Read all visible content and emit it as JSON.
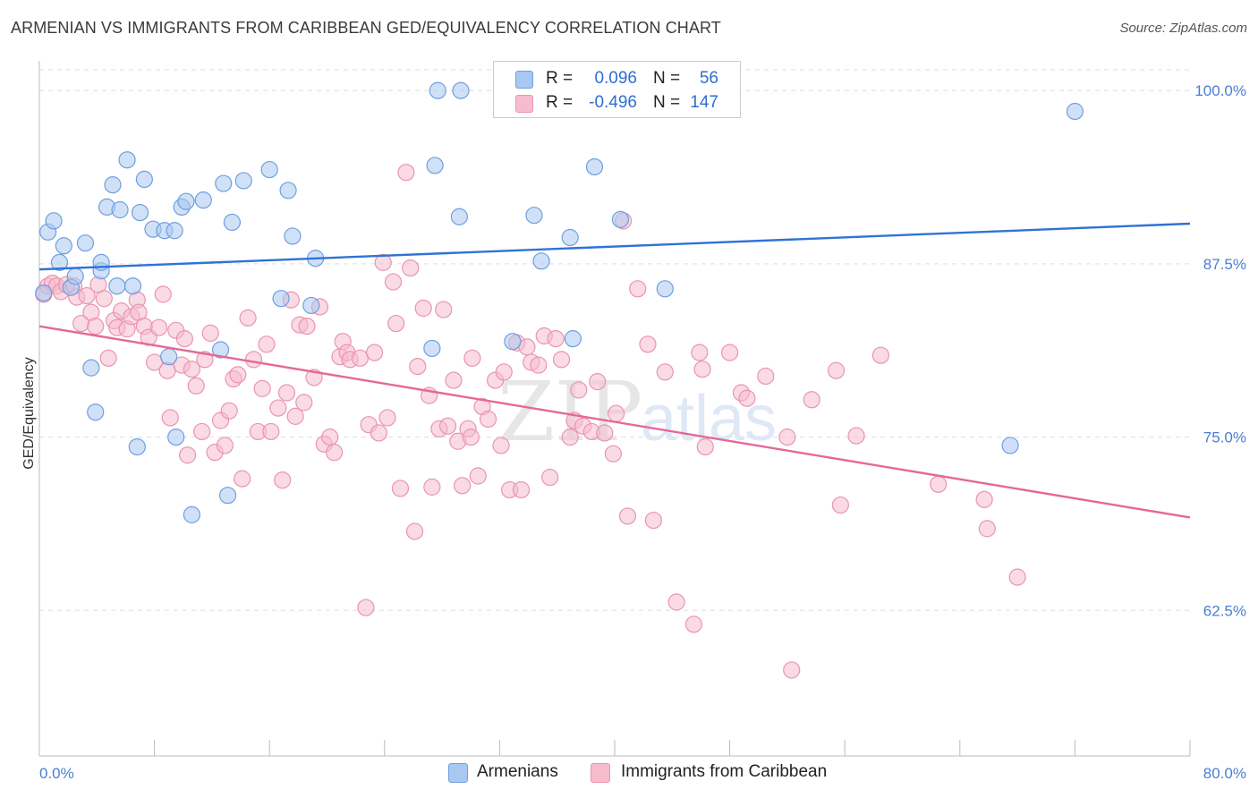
{
  "title": "ARMENIAN VS IMMIGRANTS FROM CARIBBEAN GED/EQUIVALENCY CORRELATION CHART",
  "source": "Source: ZipAtlas.com",
  "watermark": {
    "zip": "ZIP",
    "atlas": "atlas"
  },
  "colors": {
    "blue_fill": "#a9c8f0",
    "blue_stroke": "#6e9fe0",
    "blue_line": "#2f73d6",
    "pink_fill": "#f6bccd",
    "pink_stroke": "#e995b0",
    "pink_line": "#e4689a",
    "tick_text": "#4a7fd0",
    "grid": "#dddddd"
  },
  "legend": {
    "rows": [
      {
        "r_label": "R =",
        "r_value": "0.096",
        "n_label": "N =",
        "n_value": "56",
        "color": "#a9c8f0"
      },
      {
        "r_label": "R =",
        "r_value": "-0.496",
        "n_label": "N =",
        "n_value": "147",
        "color": "#f6bccd"
      }
    ]
  },
  "bottom_legend": [
    {
      "label": "Armenians",
      "color": "#a9c8f0"
    },
    {
      "label": "Immigrants from Caribbean",
      "color": "#f6bccd"
    }
  ],
  "chart_data": {
    "type": "scatter",
    "title": "ARMENIAN VS IMMIGRANTS FROM CARIBBEAN GED/EQUIVALENCY CORRELATION CHART",
    "xlabel": "",
    "ylabel": "GED/Equivalency",
    "xlim": [
      0,
      80
    ],
    "ylim": [
      52,
      101.5
    ],
    "x_tick_labels": [
      "0.0%",
      "80.0%"
    ],
    "y_ticks": [
      62.5,
      75.0,
      87.5,
      100.0
    ],
    "y_tick_labels": [
      "62.5%",
      "75.0%",
      "87.5%",
      "100.0%"
    ],
    "grid": true,
    "legend_position": "top-center",
    "series": [
      {
        "name": "Armenians",
        "color": "#a9c8f0",
        "trend": {
          "x": [
            0,
            80
          ],
          "y": [
            87.1,
            90.4
          ]
        },
        "points": [
          [
            0.6,
            89.8
          ],
          [
            1.0,
            90.6
          ],
          [
            1.4,
            87.6
          ],
          [
            1.7,
            88.8
          ],
          [
            2.2,
            85.8
          ],
          [
            2.5,
            86.6
          ],
          [
            3.2,
            89.0
          ],
          [
            3.6,
            80.0
          ],
          [
            3.9,
            76.8
          ],
          [
            4.3,
            87.0
          ],
          [
            4.3,
            87.6
          ],
          [
            4.7,
            91.6
          ],
          [
            5.1,
            93.2
          ],
          [
            5.4,
            85.9
          ],
          [
            5.6,
            91.4
          ],
          [
            6.1,
            95.0
          ],
          [
            6.5,
            85.9
          ],
          [
            6.8,
            74.3
          ],
          [
            7.0,
            91.2
          ],
          [
            7.3,
            93.6
          ],
          [
            7.9,
            90.0
          ],
          [
            8.7,
            89.9
          ],
          [
            9.0,
            80.8
          ],
          [
            9.4,
            89.9
          ],
          [
            9.5,
            75.0
          ],
          [
            9.9,
            91.6
          ],
          [
            10.2,
            92.0
          ],
          [
            10.6,
            69.4
          ],
          [
            11.4,
            92.1
          ],
          [
            12.6,
            81.3
          ],
          [
            12.8,
            93.3
          ],
          [
            13.1,
            70.8
          ],
          [
            13.4,
            90.5
          ],
          [
            14.2,
            93.5
          ],
          [
            16.0,
            94.3
          ],
          [
            16.8,
            85.0
          ],
          [
            17.3,
            92.8
          ],
          [
            17.6,
            89.5
          ],
          [
            18.9,
            84.5
          ],
          [
            19.2,
            87.9
          ],
          [
            27.3,
            81.4
          ],
          [
            27.5,
            94.6
          ],
          [
            27.7,
            100.0
          ],
          [
            29.2,
            90.9
          ],
          [
            29.3,
            100.0
          ],
          [
            32.9,
            81.9
          ],
          [
            34.4,
            91.0
          ],
          [
            34.9,
            87.7
          ],
          [
            36.9,
            89.4
          ],
          [
            37.1,
            82.1
          ],
          [
            38.6,
            94.5
          ],
          [
            40.4,
            90.7
          ],
          [
            43.5,
            85.7
          ],
          [
            67.5,
            74.4
          ],
          [
            72.0,
            98.5
          ],
          [
            0.3,
            85.4
          ]
        ]
      },
      {
        "name": "Immigrants from Caribbean",
        "color": "#f6bccd",
        "trend": {
          "x": [
            0,
            80
          ],
          "y": [
            83.0,
            69.2
          ]
        },
        "points": [
          [
            0.3,
            85.3
          ],
          [
            0.6,
            85.9
          ],
          [
            0.9,
            86.1
          ],
          [
            1.2,
            85.9
          ],
          [
            1.5,
            85.5
          ],
          [
            1.9,
            86.0
          ],
          [
            2.4,
            85.9
          ],
          [
            2.6,
            85.1
          ],
          [
            2.9,
            83.2
          ],
          [
            3.3,
            85.2
          ],
          [
            3.6,
            84.0
          ],
          [
            3.9,
            83.0
          ],
          [
            4.1,
            86.0
          ],
          [
            4.5,
            85.0
          ],
          [
            4.8,
            80.7
          ],
          [
            5.2,
            83.4
          ],
          [
            5.4,
            82.9
          ],
          [
            5.7,
            84.1
          ],
          [
            6.1,
            82.8
          ],
          [
            6.4,
            83.7
          ],
          [
            6.8,
            84.9
          ],
          [
            6.9,
            84.0
          ],
          [
            7.3,
            83.0
          ],
          [
            7.6,
            82.2
          ],
          [
            8.0,
            80.4
          ],
          [
            8.3,
            82.9
          ],
          [
            8.6,
            85.3
          ],
          [
            8.9,
            79.8
          ],
          [
            9.1,
            76.4
          ],
          [
            9.5,
            82.7
          ],
          [
            9.9,
            80.2
          ],
          [
            10.1,
            82.1
          ],
          [
            10.3,
            73.7
          ],
          [
            10.6,
            79.9
          ],
          [
            10.9,
            78.7
          ],
          [
            11.3,
            75.4
          ],
          [
            11.5,
            80.6
          ],
          [
            11.9,
            82.5
          ],
          [
            12.2,
            73.9
          ],
          [
            12.6,
            76.2
          ],
          [
            12.9,
            74.4
          ],
          [
            13.2,
            76.9
          ],
          [
            13.5,
            79.2
          ],
          [
            13.8,
            79.5
          ],
          [
            14.1,
            72.0
          ],
          [
            14.5,
            83.6
          ],
          [
            14.9,
            80.6
          ],
          [
            15.2,
            75.4
          ],
          [
            15.5,
            78.5
          ],
          [
            15.8,
            81.7
          ],
          [
            16.1,
            75.4
          ],
          [
            16.6,
            77.1
          ],
          [
            16.9,
            71.9
          ],
          [
            17.2,
            78.2
          ],
          [
            17.5,
            84.9
          ],
          [
            17.8,
            76.5
          ],
          [
            18.1,
            83.1
          ],
          [
            18.4,
            77.5
          ],
          [
            18.6,
            83.0
          ],
          [
            19.1,
            79.3
          ],
          [
            19.5,
            84.4
          ],
          [
            19.8,
            74.5
          ],
          [
            20.2,
            75.0
          ],
          [
            20.5,
            73.9
          ],
          [
            20.9,
            80.8
          ],
          [
            21.1,
            81.9
          ],
          [
            21.4,
            81.1
          ],
          [
            21.6,
            80.6
          ],
          [
            22.3,
            80.7
          ],
          [
            22.7,
            62.7
          ],
          [
            22.9,
            75.9
          ],
          [
            23.3,
            81.1
          ],
          [
            23.6,
            75.3
          ],
          [
            23.9,
            87.6
          ],
          [
            24.2,
            76.4
          ],
          [
            24.6,
            86.2
          ],
          [
            24.8,
            83.2
          ],
          [
            25.1,
            71.3
          ],
          [
            25.5,
            94.1
          ],
          [
            25.8,
            87.2
          ],
          [
            26.1,
            68.2
          ],
          [
            26.3,
            80.1
          ],
          [
            26.7,
            84.3
          ],
          [
            27.1,
            78.0
          ],
          [
            27.3,
            71.4
          ],
          [
            27.8,
            75.6
          ],
          [
            28.1,
            84.2
          ],
          [
            28.4,
            75.8
          ],
          [
            28.8,
            79.1
          ],
          [
            29.1,
            74.7
          ],
          [
            29.4,
            71.5
          ],
          [
            29.8,
            75.6
          ],
          [
            30.1,
            80.7
          ],
          [
            30.5,
            72.2
          ],
          [
            30.8,
            77.2
          ],
          [
            31.2,
            76.3
          ],
          [
            31.7,
            79.1
          ],
          [
            32.1,
            74.4
          ],
          [
            32.3,
            79.7
          ],
          [
            32.7,
            71.2
          ],
          [
            33.2,
            81.8
          ],
          [
            33.5,
            71.2
          ],
          [
            33.9,
            81.5
          ],
          [
            34.2,
            80.4
          ],
          [
            34.7,
            80.2
          ],
          [
            35.1,
            82.3
          ],
          [
            35.5,
            72.1
          ],
          [
            35.9,
            82.1
          ],
          [
            36.3,
            80.6
          ],
          [
            36.9,
            75.0
          ],
          [
            37.2,
            76.2
          ],
          [
            37.5,
            78.4
          ],
          [
            37.8,
            75.8
          ],
          [
            38.4,
            75.4
          ],
          [
            38.8,
            79.0
          ],
          [
            39.3,
            75.3
          ],
          [
            39.9,
            73.8
          ],
          [
            40.1,
            76.7
          ],
          [
            40.6,
            90.6
          ],
          [
            40.9,
            69.3
          ],
          [
            41.6,
            85.7
          ],
          [
            42.3,
            81.7
          ],
          [
            42.7,
            69.0
          ],
          [
            43.5,
            79.7
          ],
          [
            44.3,
            63.1
          ],
          [
            45.5,
            61.5
          ],
          [
            45.9,
            81.1
          ],
          [
            46.1,
            79.9
          ],
          [
            46.3,
            74.3
          ],
          [
            48.0,
            81.1
          ],
          [
            48.8,
            78.2
          ],
          [
            49.2,
            77.8
          ],
          [
            50.5,
            79.4
          ],
          [
            52.3,
            58.2
          ],
          [
            52.0,
            75.0
          ],
          [
            53.7,
            77.7
          ],
          [
            55.4,
            79.8
          ],
          [
            55.7,
            70.1
          ],
          [
            56.8,
            75.1
          ],
          [
            58.5,
            80.9
          ],
          [
            62.5,
            71.6
          ],
          [
            65.7,
            70.5
          ],
          [
            65.9,
            68.4
          ],
          [
            68.0,
            64.9
          ],
          [
            30.0,
            75.0
          ]
        ]
      }
    ]
  }
}
